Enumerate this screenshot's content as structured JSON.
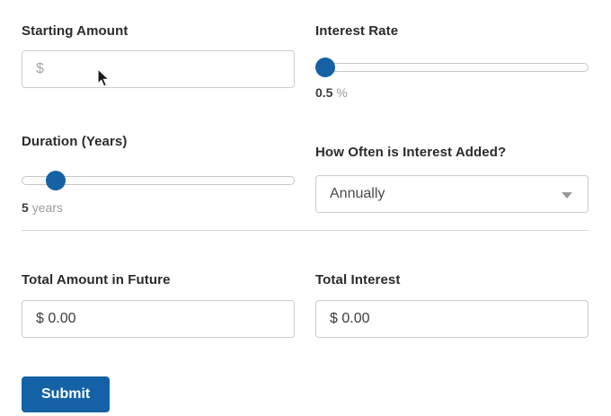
{
  "form": {
    "starting_amount": {
      "label": "Starting Amount",
      "placeholder": "$"
    },
    "interest_rate": {
      "label": "Interest Rate",
      "value": "0.5",
      "unit": "%",
      "slider_percent": 0
    },
    "duration": {
      "label": "Duration (Years)",
      "value": "5",
      "unit": "years",
      "slider_percent": 9
    },
    "frequency": {
      "label": "How Often is Interest Added?",
      "selected": "Annually"
    },
    "total_future": {
      "label": "Total Amount in Future",
      "value": "$ 0.00"
    },
    "total_interest": {
      "label": "Total Interest",
      "value": "$ 0.00"
    },
    "submit_label": "Submit"
  },
  "colors": {
    "accent_blue": "#1462a5",
    "input_border": "#cccccc",
    "label_text": "#2b2b2b",
    "muted_text": "#9b9b9b",
    "divider": "#d6d6d6"
  }
}
